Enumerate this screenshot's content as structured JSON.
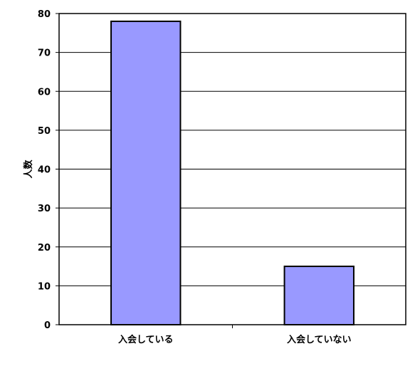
{
  "chart_data": {
    "type": "bar",
    "categories": [
      "入会している",
      "入会していない"
    ],
    "values": [
      78,
      15
    ],
    "title": "",
    "xlabel": "",
    "ylabel": "人数",
    "ylim": [
      0,
      80
    ],
    "yticks": [
      0,
      10,
      20,
      30,
      40,
      50,
      60,
      70,
      80
    ],
    "grid": true,
    "legend": "none",
    "bar_color": "#9999ff",
    "bar_edge_color": "#000000",
    "grid_color": "#000000"
  }
}
